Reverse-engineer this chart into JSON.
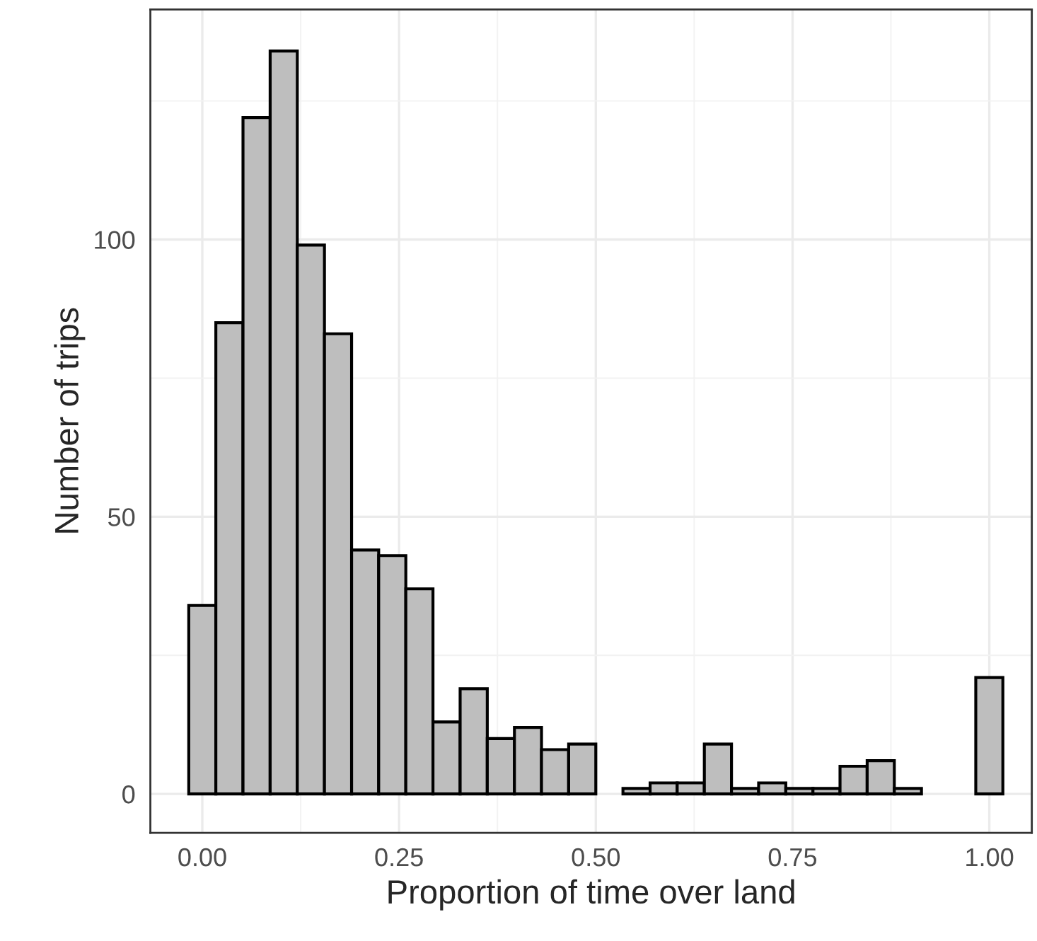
{
  "chart_data": {
    "type": "histogram",
    "xlabel": "Proportion of time over land",
    "ylabel": "Number of trips",
    "color": "#bebebe",
    "bins": [
      -0.0172,
      0.0172,
      0.0517,
      0.0862,
      0.1207,
      0.1552,
      0.1897,
      0.2241,
      0.2586,
      0.2931,
      0.3276,
      0.3621,
      0.3966,
      0.431,
      0.4655,
      0.5,
      0.5345,
      0.569,
      0.6034,
      0.6379,
      0.6724,
      0.7069,
      0.7414,
      0.7759,
      0.8103,
      0.8448,
      0.8793,
      0.9138,
      0.9483,
      0.9828,
      1.0172
    ],
    "values": [
      34,
      85,
      122,
      134,
      99,
      83,
      44,
      43,
      37,
      13,
      19,
      10,
      12,
      8,
      9,
      0,
      1,
      2,
      2,
      9,
      1,
      2,
      1,
      1,
      5,
      6,
      1,
      0,
      0,
      21
    ],
    "xlim": [
      -0.066,
      1.054
    ],
    "ylim": [
      -7,
      141.5
    ],
    "xticks": [
      {
        "value": 0,
        "label": "0.00"
      },
      {
        "value": 0.25,
        "label": "0.25"
      },
      {
        "value": 0.5,
        "label": "0.50"
      },
      {
        "value": 0.75,
        "label": "0.75"
      },
      {
        "value": 1,
        "label": "1.00"
      }
    ],
    "yticks": [
      0,
      50,
      100
    ],
    "grid": true
  }
}
